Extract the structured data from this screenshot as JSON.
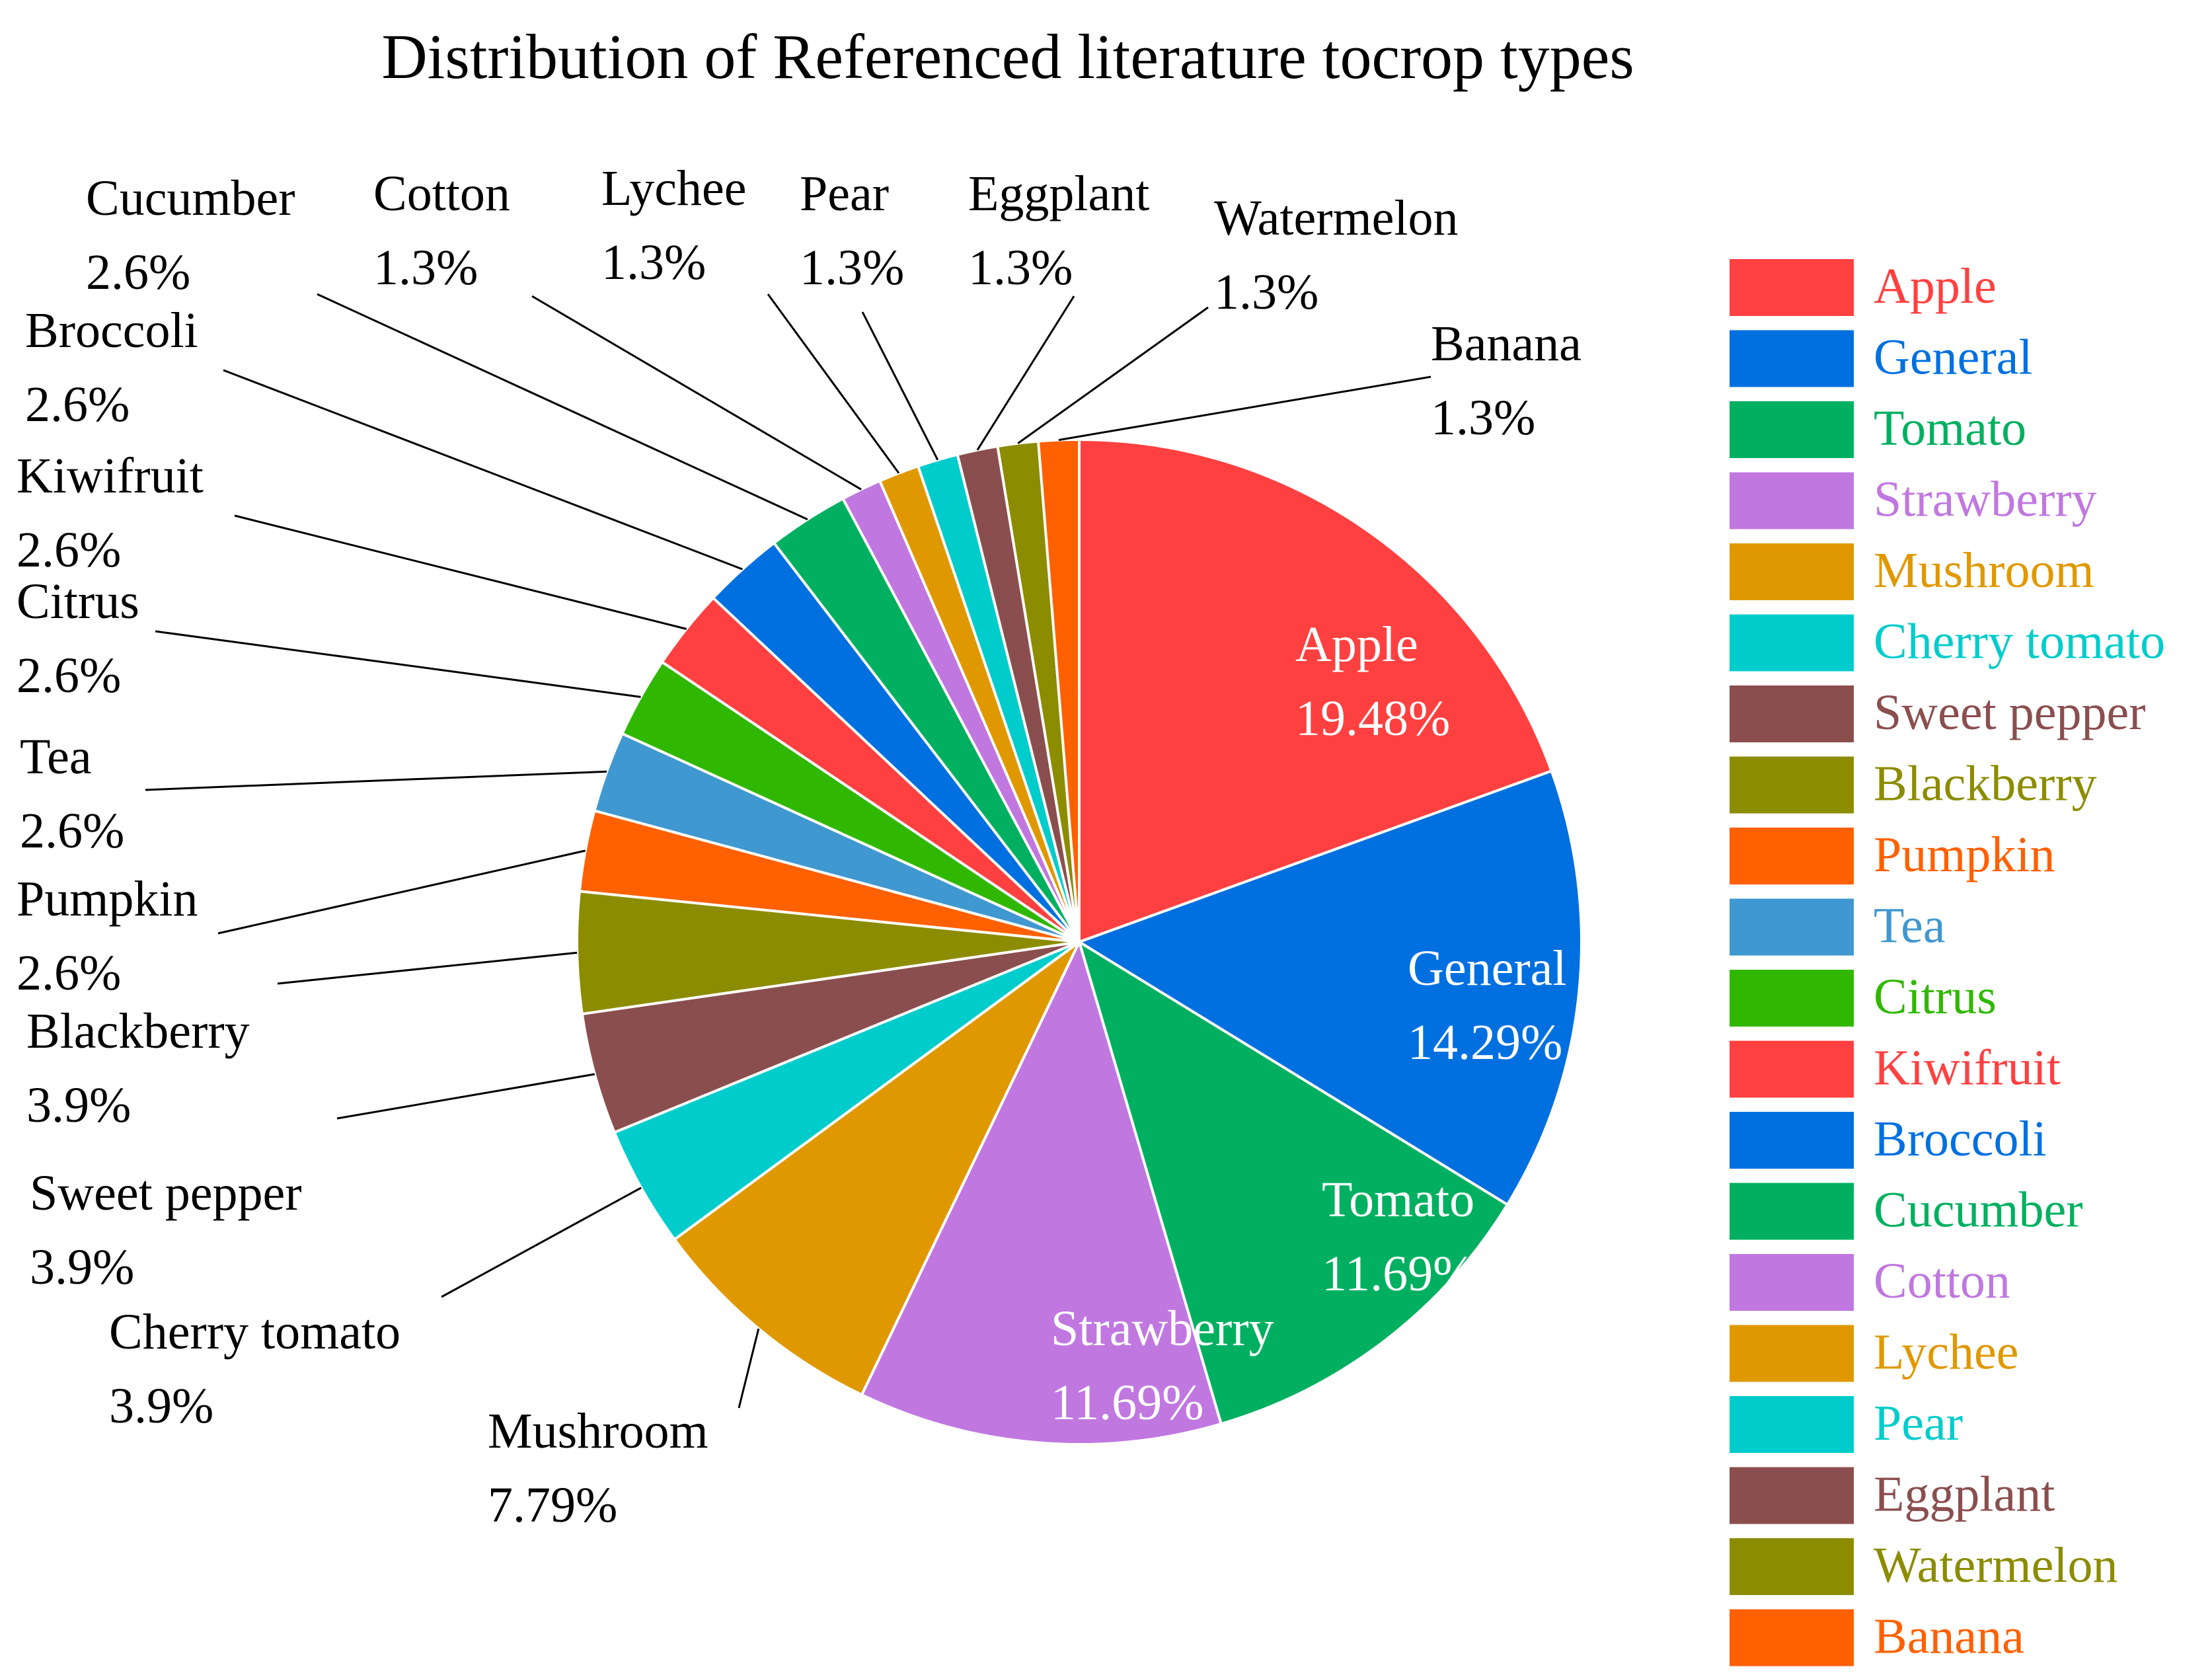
{
  "chart_data": {
    "type": "pie",
    "title": "Distribution of Referenced literature tocrop types",
    "legend_position": "right",
    "slices": [
      {
        "label": "Apple",
        "value": 19.48,
        "display": "19.48%",
        "color": "#FF4040"
      },
      {
        "label": "General",
        "value": 14.29,
        "display": "14.29%",
        "color": "#0070E0"
      },
      {
        "label": "Tomato",
        "value": 11.69,
        "display": "11.69%",
        "color": "#00B060"
      },
      {
        "label": "Strawberry",
        "value": 11.69,
        "display": "11.69%",
        "color": "#C078E0"
      },
      {
        "label": "Mushroom",
        "value": 7.79,
        "display": "7.79%",
        "color": "#E09800"
      },
      {
        "label": "Cherry tomato",
        "value": 3.9,
        "display": "3.9%",
        "color": "#00CCCC"
      },
      {
        "label": "Sweet pepper",
        "value": 3.9,
        "display": "3.9%",
        "color": "#8B4E4E"
      },
      {
        "label": "Blackberry",
        "value": 3.9,
        "display": "3.9%",
        "color": "#8C8C00"
      },
      {
        "label": "Pumpkin",
        "value": 2.6,
        "display": "2.6%",
        "color": "#FF6000"
      },
      {
        "label": "Tea",
        "value": 2.6,
        "display": "2.6%",
        "color": "#4098D0"
      },
      {
        "label": "Citrus",
        "value": 2.6,
        "display": "2.6%",
        "color": "#30B800"
      },
      {
        "label": "Kiwifruit",
        "value": 2.6,
        "display": "2.6%",
        "color": "#FF4040"
      },
      {
        "label": "Broccoli",
        "value": 2.6,
        "display": "2.6%",
        "color": "#0070E0"
      },
      {
        "label": "Cucumber",
        "value": 2.6,
        "display": "2.6%",
        "color": "#00B060"
      },
      {
        "label": "Cotton",
        "value": 1.3,
        "display": "1.3%",
        "color": "#C078E0"
      },
      {
        "label": "Lychee",
        "value": 1.3,
        "display": "1.3%",
        "color": "#E09800"
      },
      {
        "label": "Pear",
        "value": 1.3,
        "display": "1.3%",
        "color": "#00CCCC"
      },
      {
        "label": "Eggplant",
        "value": 1.3,
        "display": "1.3%",
        "color": "#8B4E4E"
      },
      {
        "label": "Watermelon",
        "value": 1.3,
        "display": "1.3%",
        "color": "#8C8C00"
      },
      {
        "label": "Banana",
        "value": 1.3,
        "display": "1.3%",
        "color": "#FF6000"
      }
    ]
  }
}
